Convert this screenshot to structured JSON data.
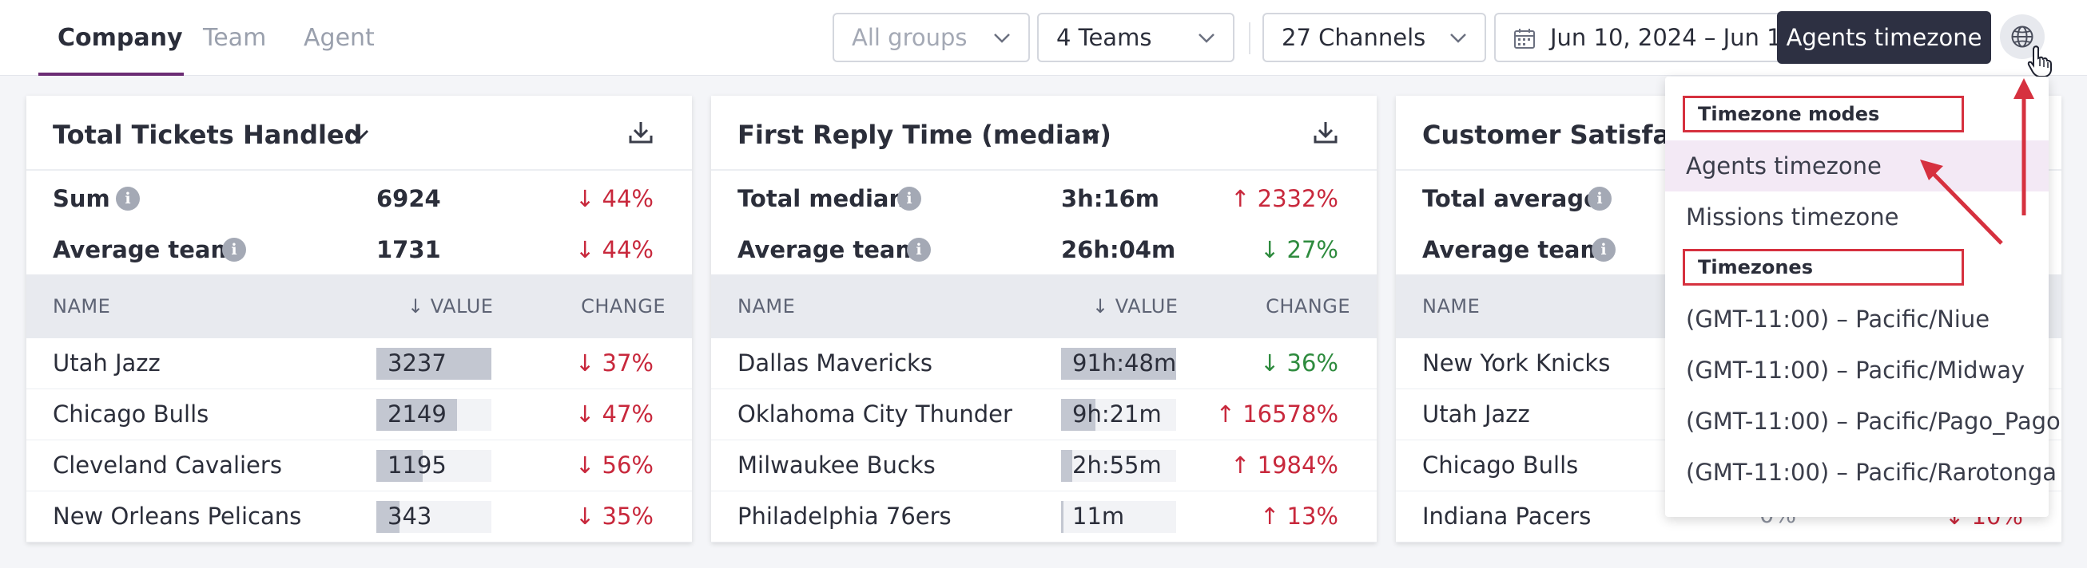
{
  "tabs": [
    {
      "label": "Company",
      "active": true
    },
    {
      "label": "Team",
      "active": false
    },
    {
      "label": "Agent",
      "active": false
    }
  ],
  "filters": {
    "groups_placeholder": "All groups",
    "teams": "4 Teams",
    "channels": "27 Channels",
    "date_range": "Jun 10, 2024 – Jun 16, 2024"
  },
  "tooltip": "Agents timezone",
  "icons": {
    "globe": "globe-icon",
    "calendar": "calendar-icon",
    "download": "download-icon",
    "info": "info-icon",
    "chevron": "chevron-down-icon",
    "cursor": "hand-pointer-cursor"
  },
  "table_headers": {
    "name": "NAME",
    "value": "↓ VALUE",
    "change": "CHANGE"
  },
  "cards": [
    {
      "title": "Total Tickets Handled",
      "summary": [
        {
          "label": "Sum",
          "value": "6924",
          "change": "↓ 44%",
          "trend": "down"
        },
        {
          "label": "Average team",
          "value": "1731",
          "change": "↓ 44%",
          "trend": "down"
        }
      ],
      "rows": [
        {
          "name": "Utah Jazz",
          "value": "3237",
          "fill": 1.0,
          "change": "↓ 37%",
          "trend": "down"
        },
        {
          "name": "Chicago Bulls",
          "value": "2149",
          "fill": 0.7,
          "change": "↓ 47%",
          "trend": "down"
        },
        {
          "name": "Cleveland Cavaliers",
          "value": "1195",
          "fill": 0.4,
          "change": "↓ 56%",
          "trend": "down"
        },
        {
          "name": "New Orleans Pelicans",
          "value": "343",
          "fill": 0.2,
          "change": "↓ 35%",
          "trend": "down"
        }
      ]
    },
    {
      "title": "First Reply Time (median)",
      "summary": [
        {
          "label": "Total median",
          "value": "3h:16m",
          "change": "↑ 2332%",
          "trend": "up-red"
        },
        {
          "label": "Average team",
          "value": "26h:04m",
          "change": "↓ 27%",
          "trend": "down-green"
        }
      ],
      "rows": [
        {
          "name": "Dallas Mavericks",
          "value": "91h:48m",
          "fill": 1.0,
          "change": "↓ 36%",
          "trend": "down-green"
        },
        {
          "name": "Oklahoma City Thunder",
          "value": "9h:21m",
          "fill": 0.3,
          "change": "↑ 16578%",
          "trend": "up-red"
        },
        {
          "name": "Milwaukee Bucks",
          "value": "2h:55m",
          "fill": 0.1,
          "change": "↑ 1984%",
          "trend": "up-red"
        },
        {
          "name": "Philadelphia 76ers",
          "value": "11m",
          "fill": 0.02,
          "change": "↑ 13%",
          "trend": "up-red"
        }
      ]
    },
    {
      "title": "Customer Satisfaction",
      "summary": [
        {
          "label": "Total average",
          "value": "",
          "change": "",
          "trend": "down"
        },
        {
          "label": "Average team",
          "value": "",
          "change": "",
          "trend": "down"
        }
      ],
      "rows": [
        {
          "name": "New York Knicks",
          "value": "",
          "fill": 0,
          "change": "",
          "trend": "down"
        },
        {
          "name": "Utah Jazz",
          "value": "",
          "fill": 0,
          "change": "",
          "trend": "down"
        },
        {
          "name": "Chicago Bulls",
          "value": "",
          "fill": 0,
          "change": "",
          "trend": "down"
        },
        {
          "name": "Indiana Pacers",
          "value": "0%",
          "fill": 0,
          "change": "↓ 10%",
          "trend": "down"
        }
      ]
    }
  ],
  "timezone_menu": {
    "modes_header": "Timezone modes",
    "modes": [
      {
        "label": "Agents timezone",
        "selected": true
      },
      {
        "label": "Missions timezone",
        "selected": false
      }
    ],
    "zones_header": "Timezones",
    "zones": [
      "(GMT-11:00) – Pacific/Niue",
      "(GMT-11:00) – Pacific/Midway",
      "(GMT-11:00) – Pacific/Pago_Pago",
      "(GMT-11:00) – Pacific/Rarotonga"
    ]
  },
  "colors": {
    "accent": "#6b2c74",
    "negative": "#c8283c",
    "positive": "#2e8b3e",
    "annotation": "#d6313f"
  }
}
